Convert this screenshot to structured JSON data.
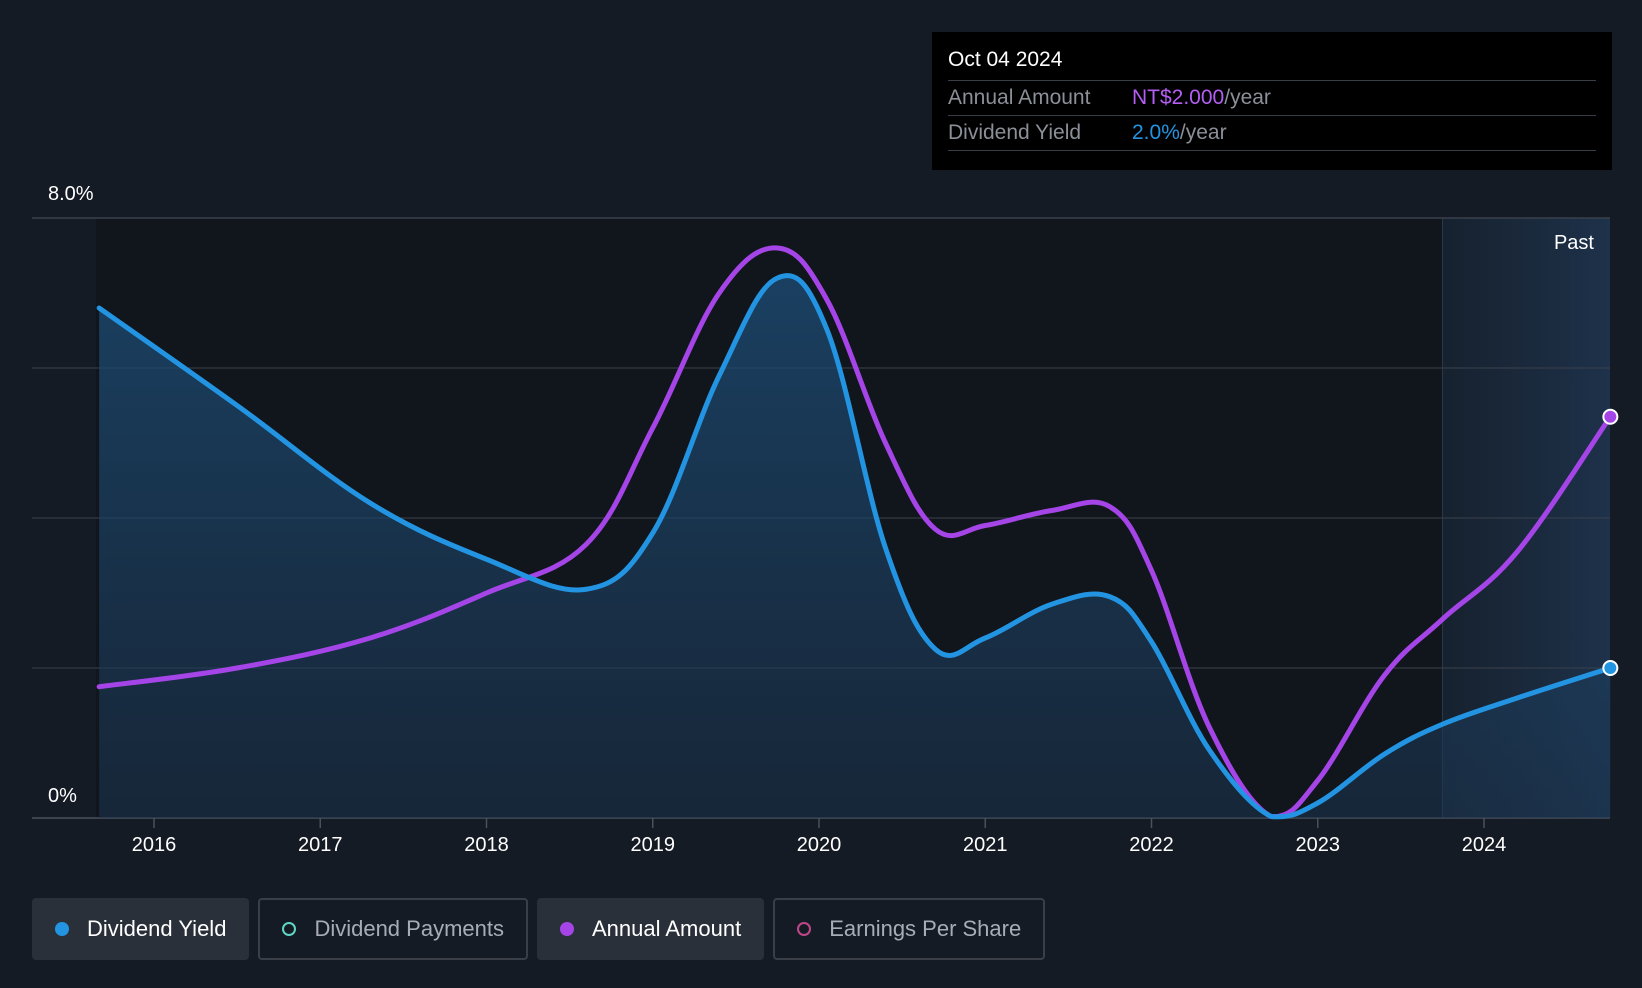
{
  "colors": {
    "background": "#151b24",
    "yield": "#2394e2",
    "annual": "#a545e8",
    "payments": "#5fd5c5",
    "eps": "#c0468a",
    "grid": "#3a414c"
  },
  "tooltip": {
    "date": "Oct 04 2024",
    "rows": [
      {
        "label": "Annual Amount",
        "value": "NT$2.000",
        "unit": "/year",
        "color": "#b45ef5"
      },
      {
        "label": "Dividend Yield",
        "value": "2.0%",
        "unit": "/year",
        "color": "#2394e2"
      }
    ]
  },
  "past_label": "Past",
  "legend": [
    {
      "label": "Dividend Yield",
      "active": true,
      "color": "#2394e2"
    },
    {
      "label": "Dividend Payments",
      "active": false,
      "color": "#5fd5c5"
    },
    {
      "label": "Annual Amount",
      "active": true,
      "color": "#a545e8"
    },
    {
      "label": "Earnings Per Share",
      "active": false,
      "color": "#c0468a"
    }
  ],
  "chart_data": {
    "type": "line",
    "y_top_label": "8.0%",
    "y_bottom_label": "0%",
    "ylim": [
      0,
      8
    ],
    "xlim": [
      2015.3,
      2024.76
    ],
    "x_ticks": [
      "2016",
      "2017",
      "2018",
      "2019",
      "2020",
      "2021",
      "2022",
      "2023",
      "2024"
    ],
    "grid": true,
    "series": [
      {
        "name": "Dividend Yield",
        "x": [
          2015.67,
          2016.5,
          2017.3,
          2018.0,
          2018.6,
          2019.0,
          2019.4,
          2019.75,
          2020.05,
          2020.4,
          2020.7,
          2021.0,
          2021.4,
          2021.75,
          2022.0,
          2022.35,
          2022.72,
          2023.0,
          2023.4,
          2023.75,
          2024.2,
          2024.76
        ],
        "values": [
          6.8,
          5.5,
          4.2,
          3.45,
          3.05,
          3.8,
          5.9,
          7.2,
          6.5,
          3.6,
          2.25,
          2.4,
          2.85,
          2.95,
          2.35,
          0.9,
          0.02,
          0.2,
          0.85,
          1.25,
          1.6,
          2.0
        ]
      },
      {
        "name": "Annual Amount",
        "x": [
          2015.67,
          2016.5,
          2017.3,
          2018.0,
          2018.6,
          2019.0,
          2019.4,
          2019.75,
          2020.05,
          2020.4,
          2020.7,
          2021.0,
          2021.4,
          2021.75,
          2022.0,
          2022.35,
          2022.72,
          2023.0,
          2023.4,
          2023.75,
          2024.2,
          2024.76
        ],
        "values": [
          1.75,
          2.0,
          2.4,
          3.0,
          3.65,
          5.2,
          7.0,
          7.6,
          6.9,
          5.0,
          3.85,
          3.9,
          4.1,
          4.15,
          3.3,
          1.2,
          0.02,
          0.5,
          1.9,
          2.65,
          3.55,
          5.35
        ]
      }
    ]
  }
}
